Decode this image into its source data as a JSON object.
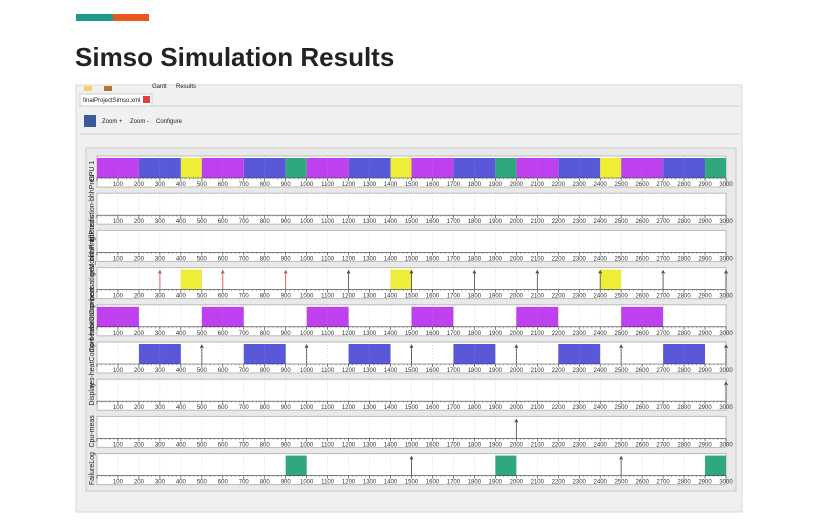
{
  "header": {
    "title": "Simso Simulation Results"
  },
  "window": {
    "menu": [
      "Gantt",
      "Results"
    ],
    "tab": "finalProjectSimso.xml",
    "toolbar": [
      "Zoom +",
      "Zoom -",
      "Configure"
    ]
  },
  "gantt": {
    "xlim": [
      0,
      3000
    ],
    "ticks": [
      100,
      200,
      300,
      400,
      500,
      600,
      700,
      800,
      900,
      1000,
      1100,
      1200,
      1300,
      1400,
      1500,
      1600,
      1700,
      1800,
      1900,
      2000,
      2100,
      2200,
      2300,
      2400,
      2500,
      2600,
      2700,
      2800,
      2900,
      3000
    ],
    "rows": [
      {
        "label": "CPU 1",
        "segments": [
          {
            "start": 0,
            "end": 200,
            "color": "#bf40ee"
          },
          {
            "start": 200,
            "end": 400,
            "color": "#5858d8"
          },
          {
            "start": 400,
            "end": 500,
            "color": "#eeee38"
          },
          {
            "start": 500,
            "end": 700,
            "color": "#bf40ee"
          },
          {
            "start": 700,
            "end": 900,
            "color": "#5858d8"
          },
          {
            "start": 900,
            "end": 1000,
            "color": "#2ea87c"
          },
          {
            "start": 1000,
            "end": 1200,
            "color": "#bf40ee"
          },
          {
            "start": 1200,
            "end": 1400,
            "color": "#5858d8"
          },
          {
            "start": 1400,
            "end": 1500,
            "color": "#eeee38"
          },
          {
            "start": 1500,
            "end": 1700,
            "color": "#bf40ee"
          },
          {
            "start": 1700,
            "end": 1900,
            "color": "#5858d8"
          },
          {
            "start": 1900,
            "end": 2000,
            "color": "#2ea87c"
          },
          {
            "start": 2000,
            "end": 2200,
            "color": "#bf40ee"
          },
          {
            "start": 2200,
            "end": 2400,
            "color": "#5858d8"
          },
          {
            "start": 2400,
            "end": 2500,
            "color": "#eeee38"
          },
          {
            "start": 2500,
            "end": 2700,
            "color": "#bf40ee"
          },
          {
            "start": 2700,
            "end": 2900,
            "color": "#5858d8"
          },
          {
            "start": 2900,
            "end": 3000,
            "color": "#2ea87c"
          }
        ],
        "arrows": []
      },
      {
        "label": "liftPrediction-bhhPres",
        "segments": [],
        "arrows": []
      },
      {
        "label": "ges_bhhPredictions",
        "segments": [],
        "arrows": []
      },
      {
        "label": "heatCompensationMonitoring",
        "segments": [
          {
            "start": 400,
            "end": 500,
            "color": "#eeee38"
          },
          {
            "start": 1400,
            "end": 1500,
            "color": "#eeee38"
          },
          {
            "start": 2400,
            "end": 2500,
            "color": "#eeee38"
          }
        ],
        "arrows": [
          {
            "t": 300,
            "color": "#d03030"
          },
          {
            "t": 600,
            "color": "#d03030"
          },
          {
            "t": 900,
            "color": "#d03030"
          },
          {
            "t": 1200,
            "color": "#333333"
          },
          {
            "t": 1500,
            "color": "#333333"
          },
          {
            "t": 1800,
            "color": "#333333"
          },
          {
            "t": 2100,
            "color": "#333333"
          },
          {
            "t": 2400,
            "color": "#333333"
          },
          {
            "t": 2700,
            "color": "#333333"
          },
          {
            "t": 3000,
            "color": "#333333"
          }
        ]
      },
      {
        "label": "Cont-heatComp-heat",
        "segments": [
          {
            "start": 0,
            "end": 200,
            "color": "#bf40ee"
          },
          {
            "start": 500,
            "end": 700,
            "color": "#bf40ee"
          },
          {
            "start": 1000,
            "end": 1200,
            "color": "#bf40ee"
          },
          {
            "start": 1500,
            "end": 1700,
            "color": "#bf40ee"
          },
          {
            "start": 2000,
            "end": 2200,
            "color": "#bf40ee"
          },
          {
            "start": 2500,
            "end": 2700,
            "color": "#bf40ee"
          }
        ],
        "arrows": []
      },
      {
        "label": "res-heatComp-heat",
        "segments": [
          {
            "start": 200,
            "end": 400,
            "color": "#5858d8"
          },
          {
            "start": 700,
            "end": 900,
            "color": "#5858d8"
          },
          {
            "start": 1200,
            "end": 1400,
            "color": "#5858d8"
          },
          {
            "start": 1700,
            "end": 1900,
            "color": "#5858d8"
          },
          {
            "start": 2200,
            "end": 2400,
            "color": "#5858d8"
          },
          {
            "start": 2700,
            "end": 2900,
            "color": "#5858d8"
          }
        ],
        "arrows": [
          {
            "t": 500,
            "color": "#333333"
          },
          {
            "t": 1000,
            "color": "#333333"
          },
          {
            "t": 1500,
            "color": "#333333"
          },
          {
            "t": 2000,
            "color": "#333333"
          },
          {
            "t": 2500,
            "color": "#333333"
          },
          {
            "t": 3000,
            "color": "#333333"
          }
        ]
      },
      {
        "label": "Display",
        "segments": [],
        "arrows": [
          {
            "t": 3000,
            "color": "#333333"
          }
        ]
      },
      {
        "label": "Cpu-meas",
        "segments": [],
        "arrows": [
          {
            "t": 2000,
            "color": "#333333"
          }
        ]
      },
      {
        "label": "FailureLog",
        "segments": [
          {
            "start": 900,
            "end": 1000,
            "color": "#2ea87c"
          },
          {
            "start": 1900,
            "end": 2000,
            "color": "#2ea87c"
          },
          {
            "start": 2900,
            "end": 3000,
            "color": "#2ea87c"
          }
        ],
        "arrows": [
          {
            "t": 1500,
            "color": "#333333"
          },
          {
            "t": 2500,
            "color": "#333333"
          }
        ]
      }
    ]
  }
}
